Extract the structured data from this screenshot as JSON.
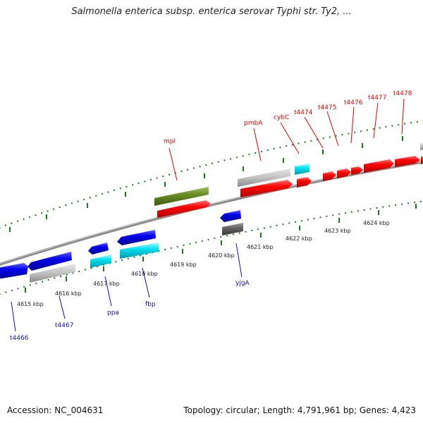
{
  "title": "Salmonella enterica subsp. enterica serovar Typhi str. Ty2, ...",
  "footer": {
    "accession": "Accession: NC_004631",
    "info": "Topology: circular; Length: 4,791,961 bp; Genes: 4,423"
  },
  "colors": {
    "forward_gene": "#ff0000",
    "reverse_gene": "#0000ee",
    "rna_gene": "#00ddee",
    "pseudo_gene": "#bbbbbb",
    "gap_gene": "#6b8e23",
    "dark_gene": "#606060",
    "tick": "#1a7a1a",
    "forward_label": "#e00000",
    "reverse_label": "#1010b0"
  },
  "scale": {
    "unit": "kbp",
    "ticks": [
      4615,
      4616,
      4617,
      4618,
      4619,
      4620,
      4621,
      4622,
      4623,
      4624
    ]
  },
  "tick_labels": [
    "4615 kbp",
    "4616 kbp",
    "4617 kbp",
    "4618 kbp",
    "4619 kbp",
    "4620 kbp",
    "4621 kbp",
    "4622 kbp",
    "4623 kbp",
    "4624 kbp"
  ],
  "forward_labels": [
    "mpl",
    "pmbA",
    "cybC",
    "t4474",
    "t4475",
    "t4476",
    "t4477",
    "t4478"
  ],
  "reverse_labels": [
    "t4466",
    "t4467",
    "ppa",
    "fbp",
    "yjgA"
  ]
}
